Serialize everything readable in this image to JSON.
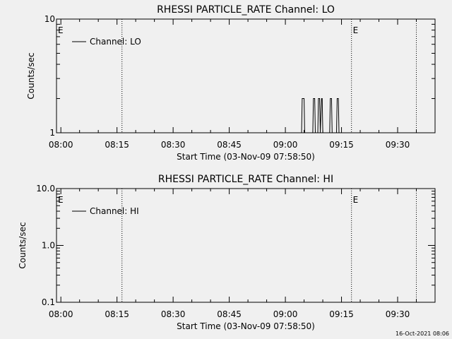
{
  "chart_data": [
    {
      "type": "line",
      "title": "RHESSI PARTICLE_RATE Channel: LO",
      "xlabel": "Start Time (03-Nov-09 07:58:50)",
      "ylabel": "Counts/sec",
      "y_scale": "log",
      "ylim": [
        1,
        10
      ],
      "y_ticks": [
        "1",
        "10"
      ],
      "xlim": [
        "07:58:50",
        "09:40:00"
      ],
      "x_ticks": [
        "08:00",
        "08:15",
        "08:30",
        "08:45",
        "09:00",
        "09:15",
        "09:30"
      ],
      "legend": "top-left",
      "series": [
        {
          "name": "Channel: LO",
          "x": [
            "09:04:20",
            "09:04:30",
            "09:04:40",
            "09:05:00",
            "09:05:10",
            "09:07:20",
            "09:07:30",
            "09:07:50",
            "09:08:00",
            "09:08:40",
            "09:08:50",
            "09:09:10",
            "09:09:20",
            "09:09:40",
            "09:09:50",
            "09:10:00",
            "09:11:50",
            "09:12:00",
            "09:12:20",
            "09:12:30",
            "09:13:40",
            "09:13:50",
            "09:14:10",
            "09:14:20"
          ],
          "y": [
            1,
            2,
            2,
            2,
            1,
            1,
            2,
            2,
            1,
            1,
            2,
            2,
            1,
            2,
            2,
            1,
            1,
            2,
            2,
            1,
            1,
            2,
            2,
            1
          ]
        }
      ],
      "markers": [
        {
          "label": "E",
          "x": "07:58:50"
        },
        {
          "label": "E",
          "x": "09:17:40"
        }
      ],
      "dotted_lines": [
        "08:16:20",
        "09:17:40",
        "09:35:00"
      ]
    },
    {
      "type": "line",
      "title": "RHESSI PARTICLE_RATE Channel: HI",
      "xlabel": "Start Time (03-Nov-09 07:58:50)",
      "ylabel": "Counts/sec",
      "y_scale": "log",
      "ylim": [
        0.1,
        10
      ],
      "y_ticks": [
        "0.1",
        "1.0",
        "10.0"
      ],
      "xlim": [
        "07:58:50",
        "09:40:00"
      ],
      "x_ticks": [
        "08:00",
        "08:15",
        "08:30",
        "08:45",
        "09:00",
        "09:15",
        "09:30"
      ],
      "legend": "top-left",
      "series": [
        {
          "name": "Channel: HI",
          "x": [],
          "y": []
        }
      ],
      "markers": [
        {
          "label": "E",
          "x": "07:58:50"
        },
        {
          "label": "E",
          "x": "09:17:40"
        }
      ],
      "dotted_lines": [
        "08:16:20",
        "09:17:40",
        "09:35:00"
      ]
    }
  ],
  "footer": {
    "timestamp": "16-Oct-2021 08:06"
  },
  "colors": {
    "background": "#f0f0f0",
    "foreground": "#000000"
  }
}
